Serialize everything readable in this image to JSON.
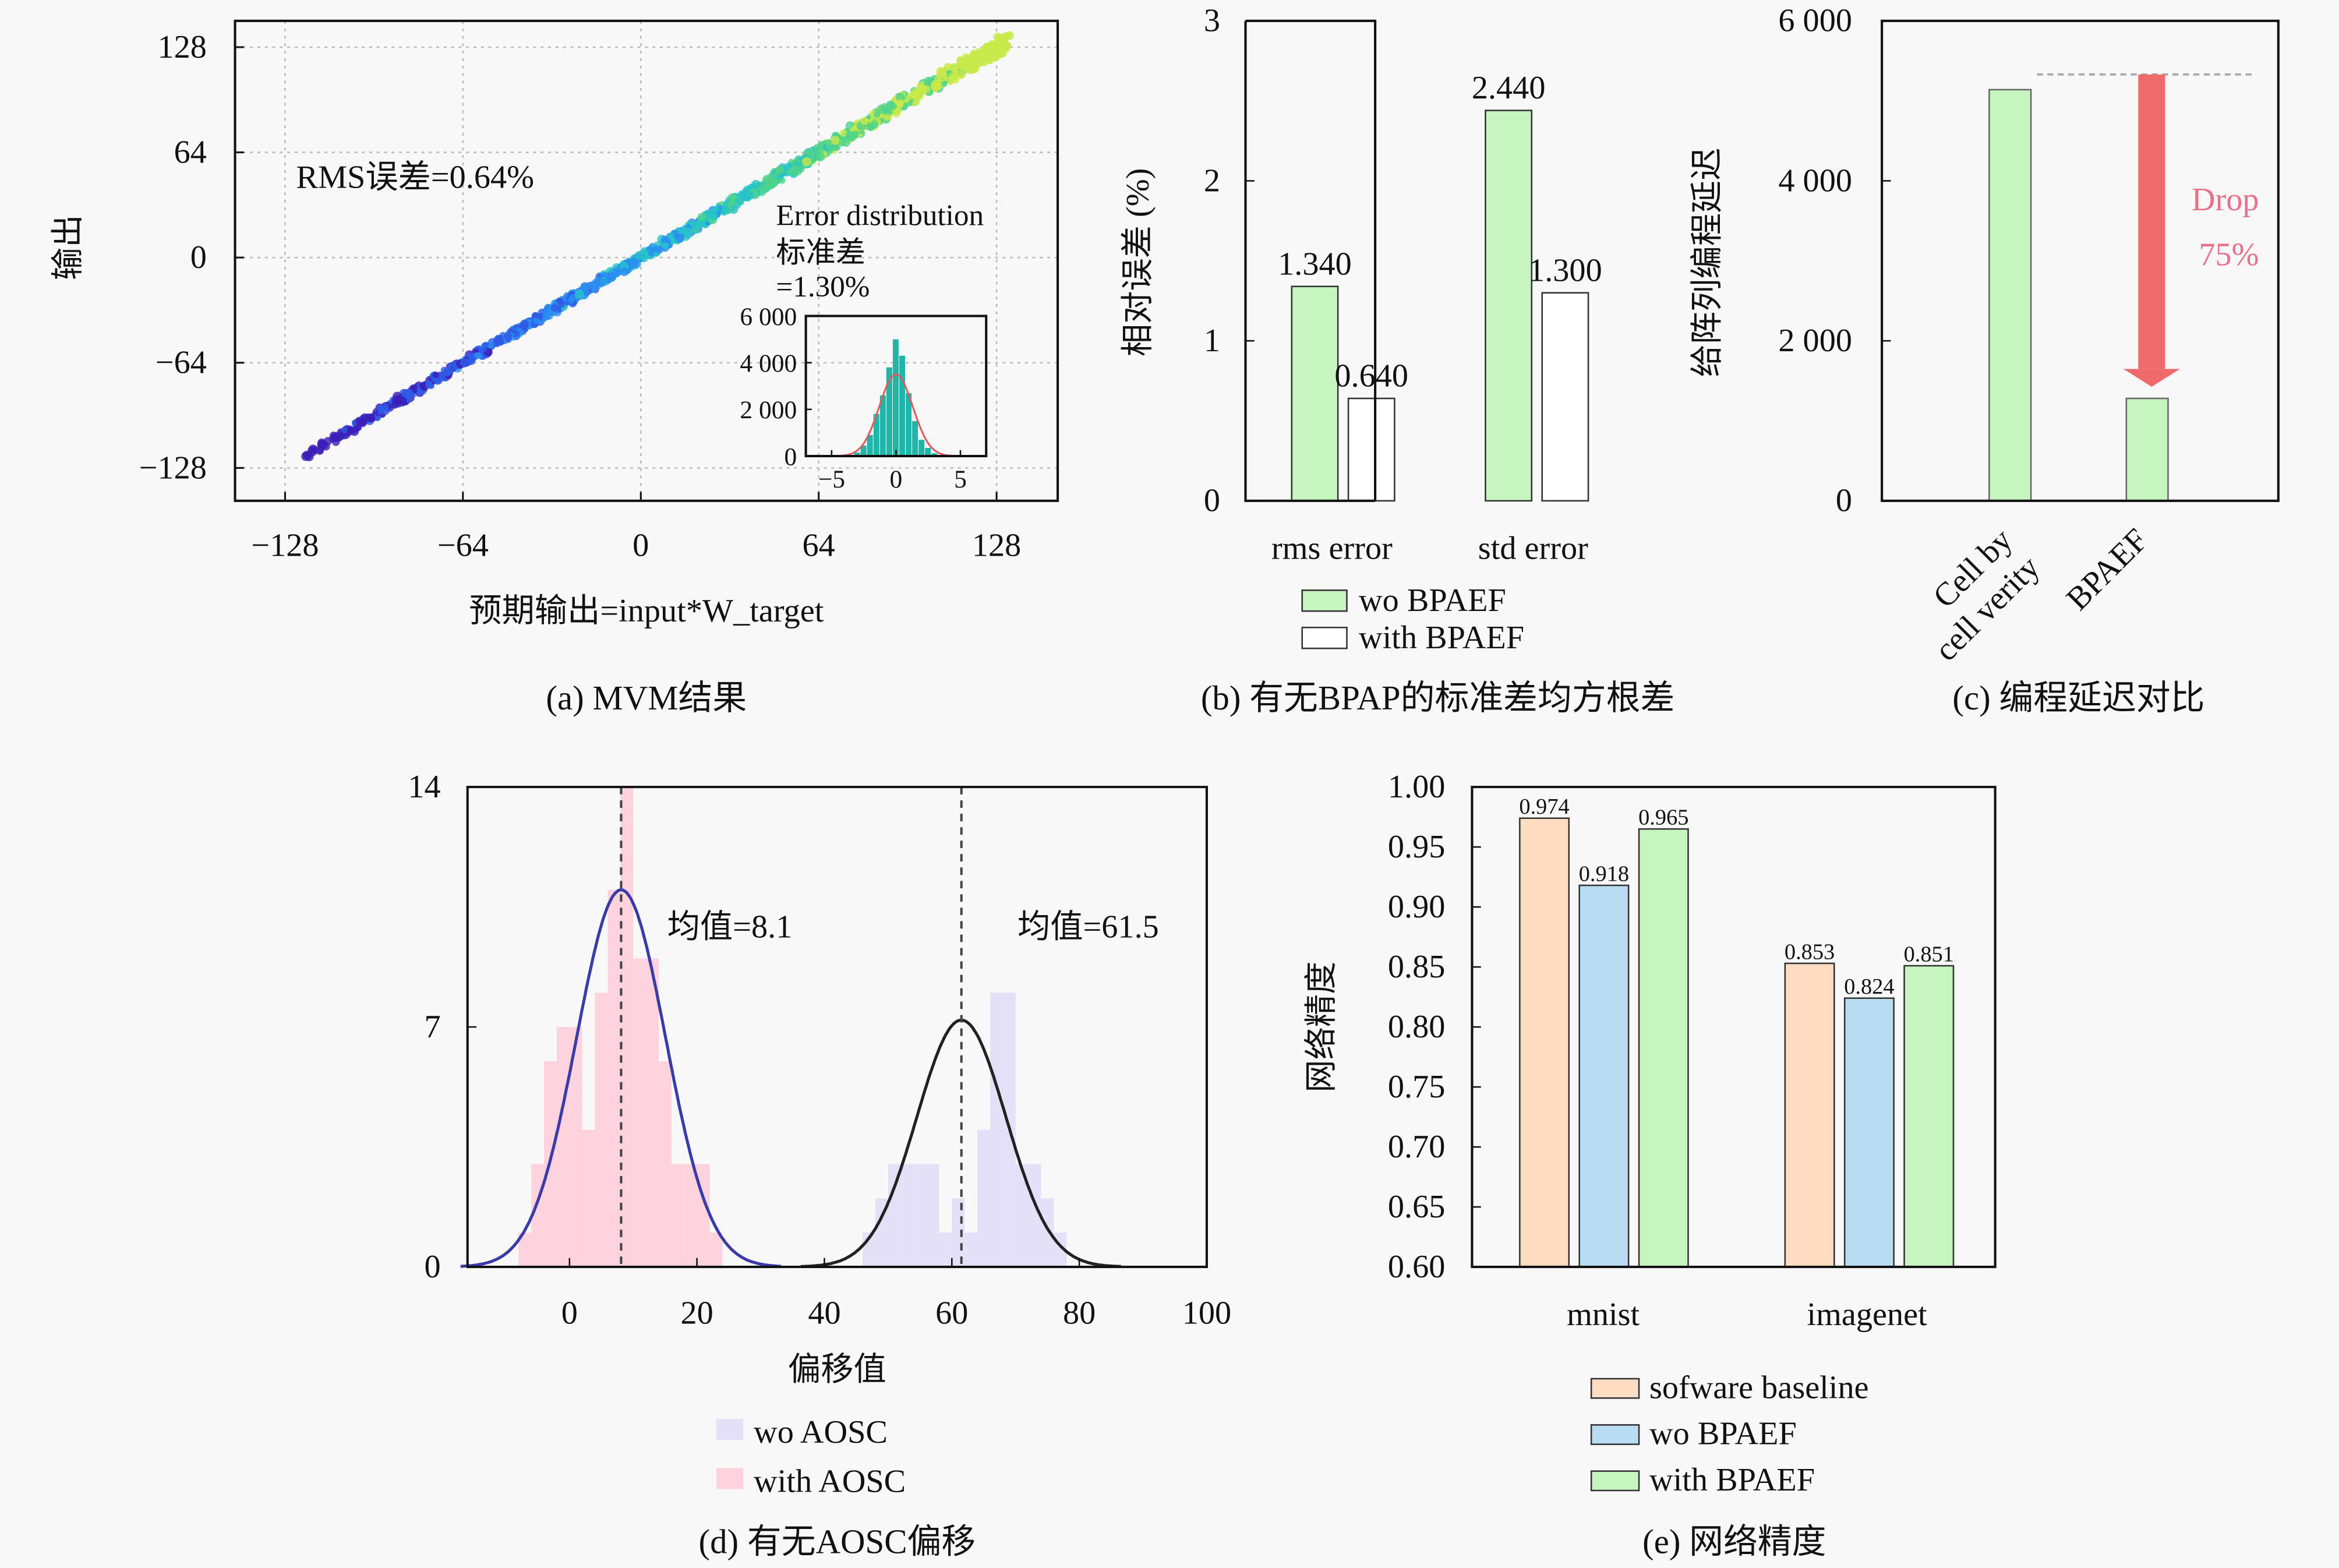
{
  "figure": {
    "background": "#f8f8f8"
  },
  "chart_data": [
    {
      "id": "a",
      "type": "scatter",
      "caption": "(a) MVM结果",
      "xlabel": "预期输出=input*W_target",
      "ylabel": "输出",
      "xlim": [
        -146,
        150
      ],
      "ylim": [
        -148,
        144
      ],
      "xticks": [
        -128,
        -64,
        0,
        64,
        128
      ],
      "yticks": [
        -128,
        -64,
        0,
        64,
        128
      ],
      "xtick_labels": [
        "−128",
        "−64",
        "0",
        "64",
        "128"
      ],
      "ytick_labels": [
        "−128",
        "−64",
        "0",
        "64",
        "128"
      ],
      "grid": true,
      "annotation": "RMS误差=0.64%",
      "trend": {
        "slope": 1.0,
        "intercept": 0,
        "x_range": [
          -122,
          132
        ]
      },
      "colormap": [
        "#3b1fb8",
        "#2f5be6",
        "#2a8ef0",
        "#27c3c9",
        "#4fd38a",
        "#c8e84a"
      ],
      "inset": {
        "type": "histogram",
        "title_lines": [
          "Error distribution",
          "标准差",
          "=1.30%"
        ],
        "xlim": [
          -7,
          7
        ],
        "ylim": [
          0,
          6000
        ],
        "xticks": [
          -5,
          0,
          5
        ],
        "xtick_labels": [
          "−5",
          "0",
          "5"
        ],
        "yticks": [
          0,
          2000,
          4000,
          6000
        ],
        "ytick_labels": [
          "0",
          "2 000",
          "4 000",
          "6 000"
        ],
        "bins": [
          -3,
          -2.5,
          -2,
          -1.5,
          -1,
          -0.5,
          0,
          0.5,
          1,
          1.5,
          2,
          2.5,
          3
        ],
        "counts": [
          150,
          450,
          900,
          1800,
          2600,
          3800,
          5000,
          4300,
          2700,
          1500,
          700,
          350,
          120
        ],
        "fit_sigma": 1.3,
        "fit_peak": 3500,
        "bar_color": "#1fb5a8",
        "fit_color": "#e05a5a"
      }
    },
    {
      "id": "b",
      "type": "bar",
      "caption": "(b) 有无BPAP的标准差均方根差",
      "xlabel": "",
      "ylabel": "相对误差 (%)",
      "ylim": [
        0,
        3
      ],
      "yticks": [
        0,
        1,
        2,
        3
      ],
      "ytick_labels": [
        "0",
        "1",
        "2",
        "3"
      ],
      "categories": [
        "rms error",
        "std error"
      ],
      "series": [
        {
          "name": "wo BPAEF",
          "values": [
            1.34,
            2.44
          ],
          "labels": [
            "1.340",
            "2.440"
          ],
          "color": "#c6f5c0"
        },
        {
          "name": "with BPAEF",
          "values": [
            0.64,
            1.3
          ],
          "labels": [
            "0.640",
            "1.300"
          ],
          "color": "#ffffff"
        }
      ],
      "legend": "bottom"
    },
    {
      "id": "c",
      "type": "bar",
      "caption": "(c) 编程延迟对比",
      "xlabel": "",
      "ylabel": "给阵列编程延迟",
      "ylim": [
        0,
        6000
      ],
      "yticks": [
        0,
        2000,
        4000,
        6000
      ],
      "ytick_labels": [
        "0",
        "2 000",
        "4 000",
        "6 000"
      ],
      "categories": [
        "Cell by cell verity",
        "BPAEF"
      ],
      "category_lines": [
        [
          "Cell by",
          "cell verity"
        ],
        [
          "BPAEF"
        ]
      ],
      "values": [
        5140,
        1280
      ],
      "color": "#c6f5c0",
      "reference_line": 5330,
      "annotation": {
        "lines": [
          "Drop",
          "75%"
        ],
        "color": "#e8708a",
        "arrow_color": "#ef6b6b",
        "arrow_from": 5330,
        "arrow_to": 1500
      }
    },
    {
      "id": "d",
      "type": "histogram",
      "caption": "(d) 有无AOSC偏移",
      "xlabel": "偏移值",
      "ylabel": "",
      "xlim": [
        -16,
        100
      ],
      "ylim": [
        0,
        14
      ],
      "xticks": [
        0,
        20,
        40,
        60,
        80,
        100
      ],
      "xtick_labels": [
        "0",
        "20",
        "40",
        "60",
        "80",
        "100"
      ],
      "yticks": [
        0,
        7,
        14
      ],
      "ytick_labels": [
        "0",
        "7",
        "14"
      ],
      "series": [
        {
          "name": "with AOSC",
          "color": "#ffd3de",
          "bin_width": 2,
          "bins": [
            -8,
            -6,
            -4,
            -2,
            0,
            2,
            4,
            6,
            8,
            10,
            12,
            14,
            16,
            18,
            20,
            22
          ],
          "counts": [
            1,
            3,
            6,
            7,
            7,
            4,
            8,
            11,
            14,
            9,
            9,
            6,
            3,
            3,
            3,
            1
          ],
          "mean": 8.1,
          "mean_label": "均值=8.1",
          "fit_peak": 11,
          "fit_sigma": 7,
          "fit_color": "#3a3aa8"
        },
        {
          "name": "wo AOSC",
          "color": "#e3e0f8",
          "bin_width": 2,
          "bins": [
            46,
            48,
            50,
            52,
            54,
            56,
            58,
            60,
            62,
            64,
            66,
            68,
            70,
            72,
            74,
            76
          ],
          "counts": [
            1,
            2,
            3,
            3,
            3,
            3,
            1,
            2,
            1,
            4,
            8,
            8,
            3,
            3,
            2,
            1
          ],
          "mean": 61.5,
          "mean_label": "均值=61.5",
          "fit_peak": 7.2,
          "fit_sigma": 7,
          "fit_color": "#222222"
        }
      ],
      "legend": "bottom"
    },
    {
      "id": "e",
      "type": "bar",
      "caption": "(e) 网络精度",
      "xlabel": "",
      "ylabel": "网络精度",
      "ylim": [
        0.6,
        1.0
      ],
      "yticks": [
        0.6,
        0.65,
        0.7,
        0.75,
        0.8,
        0.85,
        0.9,
        0.95,
        1.0
      ],
      "ytick_labels": [
        "0.60",
        "0.65",
        "0.70",
        "0.75",
        "0.80",
        "0.85",
        "0.90",
        "0.95",
        "1.00"
      ],
      "categories": [
        "mnist",
        "imagenet"
      ],
      "series": [
        {
          "name": "sofware baseline",
          "values": [
            0.974,
            0.853
          ],
          "labels": [
            "0.974",
            "0.853"
          ],
          "color": "#ffdcc2"
        },
        {
          "name": "wo BPAEF",
          "values": [
            0.918,
            0.824
          ],
          "labels": [
            "0.918",
            "0.824"
          ],
          "color": "#b9dcf3"
        },
        {
          "name": "with BPAEF",
          "values": [
            0.965,
            0.851
          ],
          "labels": [
            "0.965",
            "0.851"
          ],
          "color": "#c6f5c0"
        }
      ],
      "legend": "bottom"
    }
  ]
}
